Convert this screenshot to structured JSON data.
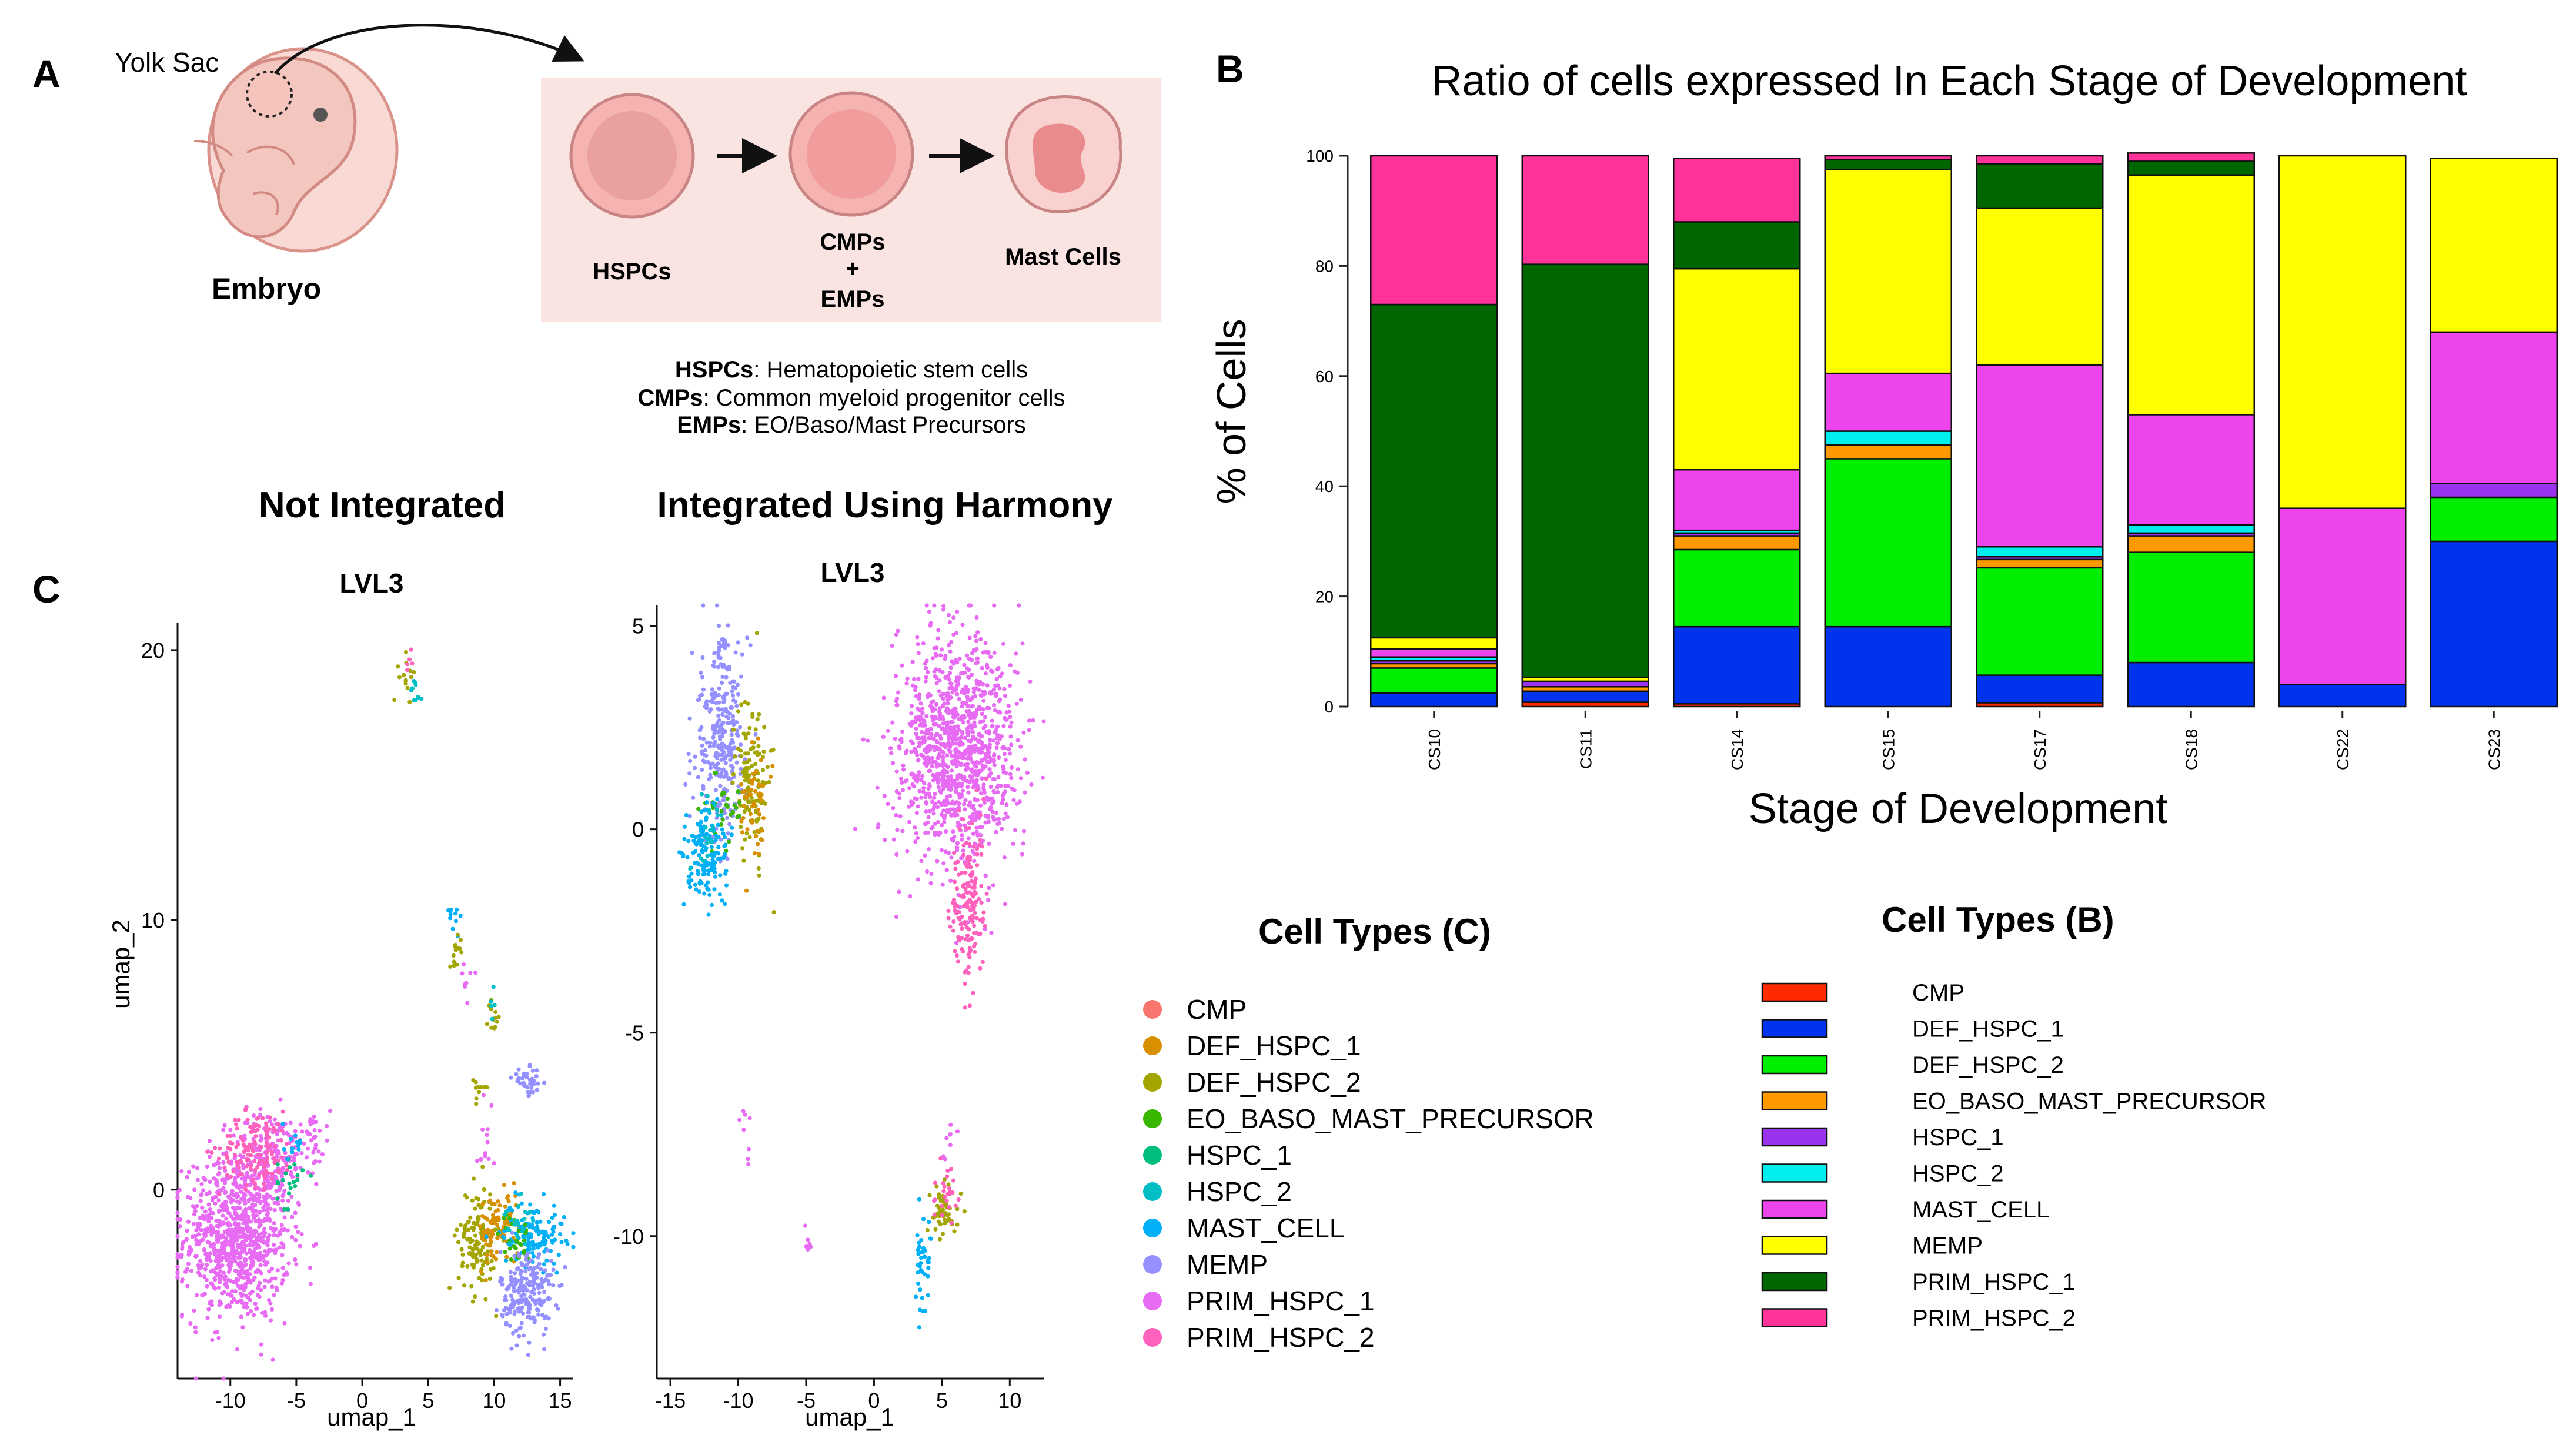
{
  "panel_labels": {
    "a": "A",
    "b": "B",
    "c": "C"
  },
  "panel_a": {
    "yolk_sac": "Yolk Sac",
    "embryo": "Embryo",
    "steps": [
      "HSPCs",
      "CMPs",
      "+",
      "EMPs",
      "Mast Cells"
    ],
    "legend": [
      {
        "abbr": "HSPCs",
        "text": ": Hematopoietic stem cells"
      },
      {
        "abbr": "CMPs",
        "text": ": Common myeloid progenitor cells"
      },
      {
        "abbr": "EMPs",
        "text": ": EO/Baso/Mast Precursors"
      }
    ],
    "colors": {
      "box": "#f9e4e2",
      "cell_fill": "#f5b4b2",
      "cell_stroke": "#c98583",
      "embryo_fill": "#f3c6bf"
    }
  },
  "chart_data": [
    {
      "type": "bar",
      "stacked": true,
      "title": "Ratio of cells expressed In Each Stage of Development",
      "xlabel": "Stage of Development",
      "ylabel": "% of Cells",
      "ylim": [
        0,
        100
      ],
      "yticks": [
        "0",
        "20",
        "40",
        "60",
        "80",
        "100"
      ],
      "categories": [
        "CS10",
        "CS11",
        "CS14",
        "CS15",
        "CS17",
        "CS18",
        "CS22",
        "CS23"
      ],
      "legend_title": "Cell Types (B)",
      "series": [
        {
          "name": "CMP",
          "color": "#ff2a00",
          "values": [
            0,
            0.8,
            0.5,
            0,
            0.7,
            0,
            0,
            0
          ]
        },
        {
          "name": "DEF_HSPC_1",
          "color": "#0033ee",
          "values": [
            2.5,
            2.0,
            14.0,
            14.5,
            5.0,
            8.0,
            4.0,
            30.0
          ]
        },
        {
          "name": "DEF_HSPC_2",
          "color": "#00ee00",
          "values": [
            4.5,
            0,
            14.0,
            30.5,
            19.5,
            20.0,
            0,
            8.0
          ]
        },
        {
          "name": "EO_BASO_MAST_PRECURSOR",
          "color": "#ff9900",
          "values": [
            0.8,
            0.8,
            2.5,
            2.5,
            1.5,
            3.0,
            0,
            0
          ]
        },
        {
          "name": "HSPC_1",
          "color": "#9933ee",
          "values": [
            0.5,
            1.0,
            0.5,
            0,
            0.5,
            0.5,
            0,
            2.5
          ]
        },
        {
          "name": "HSPC_2",
          "color": "#00eeee",
          "values": [
            0.7,
            0,
            0.5,
            2.5,
            1.8,
            1.5,
            0,
            0
          ]
        },
        {
          "name": "MAST_CELL",
          "color": "#ee44ee",
          "values": [
            1.5,
            0,
            11.0,
            10.5,
            33.0,
            20.0,
            32.0,
            27.5
          ]
        },
        {
          "name": "MEMP",
          "color": "#ffff00",
          "values": [
            2.0,
            0.7,
            36.5,
            37.0,
            28.5,
            43.5,
            64.0,
            31.5
          ]
        },
        {
          "name": "PRIM_HSPC_1",
          "color": "#006600",
          "values": [
            60.5,
            75.0,
            8.5,
            1.8,
            8.0,
            2.5,
            0,
            0
          ]
        },
        {
          "name": "PRIM_HSPC_2",
          "color": "#ff3399",
          "values": [
            27.0,
            19.7,
            11.5,
            0.7,
            1.5,
            1.5,
            0,
            0
          ]
        }
      ]
    },
    {
      "type": "scatter",
      "title": "LVL3",
      "xlabel": "umap_1",
      "ylabel": "umap_2",
      "xlim": [
        -14,
        16
      ],
      "ylim": [
        -7,
        21
      ],
      "xticks": [
        -10,
        -5,
        0,
        5,
        10,
        15
      ],
      "yticks": [
        0,
        10,
        20
      ],
      "clusters": [
        {
          "series": "PRIM_HSPC_1",
          "cx": -9.5,
          "cy": -1.8,
          "sx": 2.0,
          "sy": 1.5,
          "n": 900
        },
        {
          "series": "PRIM_HSPC_1",
          "cx": -7.0,
          "cy": 1.2,
          "sx": 1.5,
          "sy": 0.9,
          "n": 150
        },
        {
          "series": "PRIM_HSPC_2",
          "cx": -8.0,
          "cy": 1.5,
          "sx": 1.4,
          "sy": 0.7,
          "n": 140
        },
        {
          "series": "PRIM_HSPC_1",
          "cx": -4.0,
          "cy": 2.0,
          "sx": 0.8,
          "sy": 0.6,
          "n": 40
        },
        {
          "series": "HSPC_1",
          "cx": -5.5,
          "cy": 0.3,
          "sx": 0.5,
          "sy": 0.5,
          "n": 20
        },
        {
          "series": "MAST_CELL",
          "cx": -5.2,
          "cy": 1.8,
          "sx": 0.4,
          "sy": 0.4,
          "n": 12
        },
        {
          "series": "DEF_HSPC_2",
          "cx": 3.4,
          "cy": 19.0,
          "sx": 0.3,
          "sy": 0.4,
          "n": 14
        },
        {
          "series": "HSPC_2",
          "cx": 4.2,
          "cy": 18.5,
          "sx": 0.3,
          "sy": 0.3,
          "n": 10
        },
        {
          "series": "PRIM_HSPC_2",
          "cx": 3.5,
          "cy": 19.5,
          "sx": 0.2,
          "sy": 0.2,
          "n": 5
        },
        {
          "series": "MAST_CELL",
          "cx": 7.0,
          "cy": 10.2,
          "sx": 0.3,
          "sy": 0.3,
          "n": 10
        },
        {
          "series": "DEF_HSPC_2",
          "cx": 7.2,
          "cy": 9.0,
          "sx": 0.3,
          "sy": 0.3,
          "n": 14
        },
        {
          "series": "PRIM_HSPC_1",
          "cx": 8.0,
          "cy": 7.5,
          "sx": 0.3,
          "sy": 0.4,
          "n": 8
        },
        {
          "series": "DEF_HSPC_2",
          "cx": 9.8,
          "cy": 6.3,
          "sx": 0.3,
          "sy": 0.4,
          "n": 12
        },
        {
          "series": "HSPC_2",
          "cx": 9.9,
          "cy": 6.8,
          "sx": 0.2,
          "sy": 0.3,
          "n": 5
        },
        {
          "series": "DEF_HSPC_2",
          "cx": 8.8,
          "cy": 3.8,
          "sx": 0.3,
          "sy": 0.4,
          "n": 10
        },
        {
          "series": "PRIM_HSPC_1",
          "cx": 9.3,
          "cy": 2.0,
          "sx": 0.3,
          "sy": 0.8,
          "n": 12
        },
        {
          "series": "MEMP",
          "cx": 12.6,
          "cy": 4.0,
          "sx": 0.6,
          "sy": 0.25,
          "n": 40
        },
        {
          "series": "DEF_HSPC_2",
          "cx": 8.7,
          "cy": -1.8,
          "sx": 0.7,
          "sy": 1.0,
          "n": 130
        },
        {
          "series": "DEF_HSPC_1",
          "cx": 10.3,
          "cy": -1.5,
          "sx": 0.8,
          "sy": 0.7,
          "n": 90
        },
        {
          "series": "MAST_CELL",
          "cx": 13.0,
          "cy": -1.6,
          "sx": 1.2,
          "sy": 0.6,
          "n": 130
        },
        {
          "series": "EO_BASO_MAST_PRECURSOR",
          "cx": 11.5,
          "cy": -1.8,
          "sx": 0.6,
          "sy": 0.5,
          "n": 30
        },
        {
          "series": "HSPC_2",
          "cx": 12.0,
          "cy": -1.3,
          "sx": 0.6,
          "sy": 0.4,
          "n": 20
        },
        {
          "series": "MEMP",
          "cx": 12.5,
          "cy": -3.8,
          "sx": 1.0,
          "sy": 0.8,
          "n": 220
        }
      ]
    },
    {
      "type": "scatter",
      "title": "LVL3",
      "xlabel": "umap_1",
      "ylabel": "",
      "xlim": [
        -16,
        12.5
      ],
      "ylim": [
        -13.5,
        5.5
      ],
      "xticks": [
        -15,
        -10,
        -5,
        0,
        5,
        10
      ],
      "yticks": [
        -10,
        -5,
        0,
        5
      ],
      "clusters": [
        {
          "series": "MEMP",
          "cx": -11.3,
          "cy": 2.2,
          "sx": 1.0,
          "sy": 1.2,
          "n": 300
        },
        {
          "series": "DEF_HSPC_2",
          "cx": -9.0,
          "cy": 1.3,
          "sx": 0.6,
          "sy": 1.0,
          "n": 120
        },
        {
          "series": "DEF_HSPC_1",
          "cx": -8.8,
          "cy": 0.5,
          "sx": 0.5,
          "sy": 0.7,
          "n": 50
        },
        {
          "series": "EO_BASO_MAST_PRECURSOR",
          "cx": -10.8,
          "cy": 0.6,
          "sx": 0.8,
          "sy": 0.4,
          "n": 30
        },
        {
          "series": "MAST_CELL",
          "cx": -12.3,
          "cy": -0.6,
          "sx": 0.8,
          "sy": 0.6,
          "n": 150
        },
        {
          "series": "HSPC_2",
          "cx": -12.0,
          "cy": -0.1,
          "sx": 0.6,
          "sy": 0.4,
          "n": 20
        },
        {
          "series": "PRIM_HSPC_1",
          "cx": 6.0,
          "cy": 2.0,
          "sx": 2.2,
          "sy": 1.4,
          "n": 1100
        },
        {
          "series": "PRIM_HSPC_2",
          "cx": 7.0,
          "cy": -1.8,
          "sx": 0.6,
          "sy": 1.1,
          "n": 170
        },
        {
          "series": "DEF_HSPC_2",
          "cx": 5.2,
          "cy": -9.4,
          "sx": 0.6,
          "sy": 0.4,
          "n": 50
        },
        {
          "series": "PRIM_HSPC_2",
          "cx": 5.3,
          "cy": -9.1,
          "sx": 0.5,
          "sy": 0.4,
          "n": 25
        },
        {
          "series": "MAST_CELL",
          "cx": 3.6,
          "cy": -10.7,
          "sx": 0.3,
          "sy": 0.6,
          "n": 40
        },
        {
          "series": "PRIM_HSPC_1",
          "cx": -9.5,
          "cy": -7.8,
          "sx": 0.2,
          "sy": 0.4,
          "n": 8
        },
        {
          "series": "PRIM_HSPC_1",
          "cx": -4.8,
          "cy": -10.2,
          "sx": 0.2,
          "sy": 0.2,
          "n": 7
        },
        {
          "series": "PRIM_HSPC_1",
          "cx": 5.5,
          "cy": -7.6,
          "sx": 0.3,
          "sy": 0.3,
          "n": 8
        }
      ]
    }
  ],
  "headers": {
    "not_integrated": "Not Integrated",
    "integrated": "Integrated Using Harmony"
  },
  "legend_c": {
    "title": "Cell Types (C)",
    "items": [
      {
        "name": "CMP",
        "color": "#f8766d"
      },
      {
        "name": "DEF_HSPC_1",
        "color": "#d89000"
      },
      {
        "name": "DEF_HSPC_2",
        "color": "#a3a500"
      },
      {
        "name": "EO_BASO_MAST_PRECURSOR",
        "color": "#39b600"
      },
      {
        "name": "HSPC_1",
        "color": "#00bf7d"
      },
      {
        "name": "HSPC_2",
        "color": "#00bfc4"
      },
      {
        "name": "MAST_CELL",
        "color": "#00b0f6"
      },
      {
        "name": "MEMP",
        "color": "#9590ff"
      },
      {
        "name": "PRIM_HSPC_1",
        "color": "#e76bf3"
      },
      {
        "name": "PRIM_HSPC_2",
        "color": "#ff62bc"
      }
    ]
  }
}
